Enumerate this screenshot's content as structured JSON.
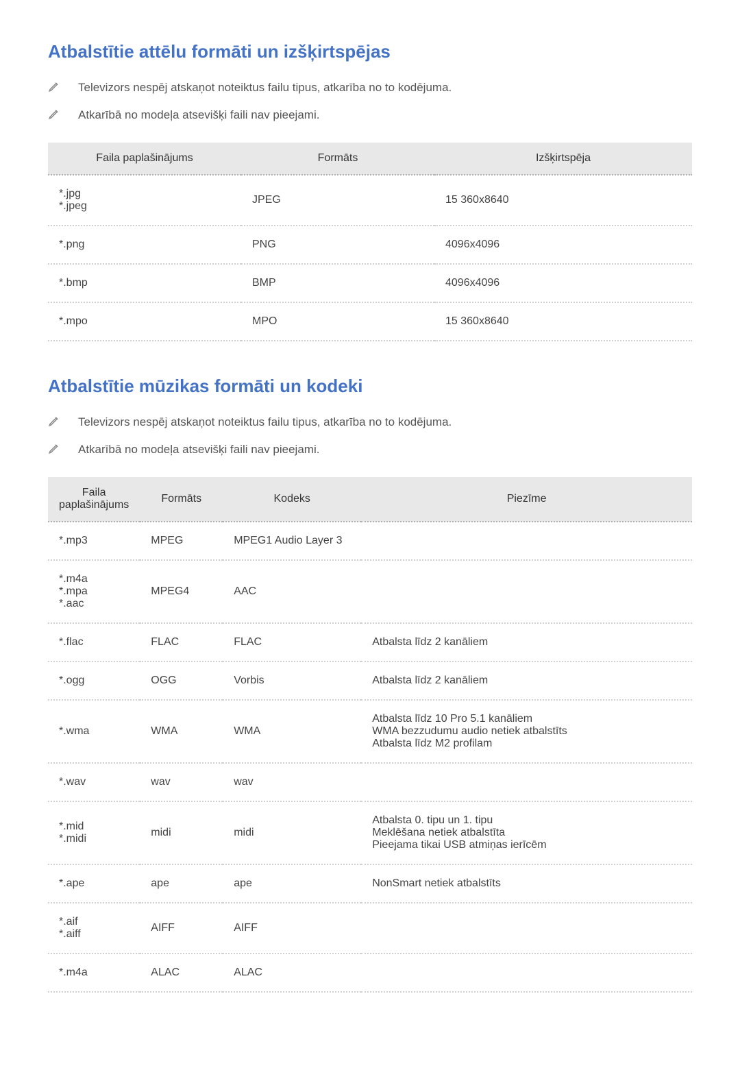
{
  "colors": {
    "heading": "#4472c4",
    "text": "#555555",
    "cell_text": "#444444",
    "header_bg": "#e8e8e8",
    "border_dotted": "#d0d0d0",
    "background": "#ffffff"
  },
  "typography": {
    "heading_fontsize": 26,
    "body_fontsize": 17,
    "table_fontsize": 16
  },
  "section1": {
    "heading": "Atbalstītie attēlu formāti un izšķirtspējas",
    "notes": [
      "Televizors nespēj atskaņot noteiktus failu tipus, atkarība no to kodējuma.",
      "Atkarībā no modeļa atsevišķi faili nav pieejami."
    ],
    "table": {
      "columns": [
        "Faila paplašinājums",
        "Formāts",
        "Izšķirtspēja"
      ],
      "rows": [
        [
          "*.jpg\n*.jpeg",
          "JPEG",
          "15 360x8640"
        ],
        [
          "*.png",
          "PNG",
          "4096x4096"
        ],
        [
          "*.bmp",
          "BMP",
          "4096x4096"
        ],
        [
          "*.mpo",
          "MPO",
          "15 360x8640"
        ]
      ]
    }
  },
  "section2": {
    "heading": "Atbalstītie mūzikas formāti un kodeki",
    "notes": [
      "Televizors nespēj atskaņot noteiktus failu tipus, atkarība no to kodējuma.",
      "Atkarībā no modeļa atsevišķi faili nav pieejami."
    ],
    "table": {
      "columns": [
        "Faila paplašinājums",
        "Formāts",
        "Kodeks",
        "Piezīme"
      ],
      "rows": [
        [
          "*.mp3",
          "MPEG",
          "MPEG1 Audio Layer 3",
          ""
        ],
        [
          "*.m4a\n*.mpa\n*.aac",
          "MPEG4",
          "AAC",
          ""
        ],
        [
          "*.flac",
          "FLAC",
          "FLAC",
          "Atbalsta līdz 2 kanāliem"
        ],
        [
          "*.ogg",
          "OGG",
          "Vorbis",
          "Atbalsta līdz 2 kanāliem"
        ],
        [
          "*.wma",
          "WMA",
          "WMA",
          "Atbalsta līdz 10 Pro 5.1 kanāliem\nWMA bezzudumu audio netiek atbalstīts\nAtbalsta līdz M2 profilam"
        ],
        [
          "*.wav",
          "wav",
          "wav",
          ""
        ],
        [
          "*.mid\n*.midi",
          "midi",
          "midi",
          "Atbalsta 0. tipu un 1. tipu\nMeklēšana netiek atbalstīta\nPieejama tikai USB atmiņas ierīcēm"
        ],
        [
          "*.ape",
          "ape",
          "ape",
          "NonSmart netiek atbalstīts"
        ],
        [
          "*.aif\n*.aiff",
          "AIFF",
          "AIFF",
          ""
        ],
        [
          "*.m4a",
          "ALAC",
          "ALAC",
          ""
        ]
      ]
    }
  }
}
